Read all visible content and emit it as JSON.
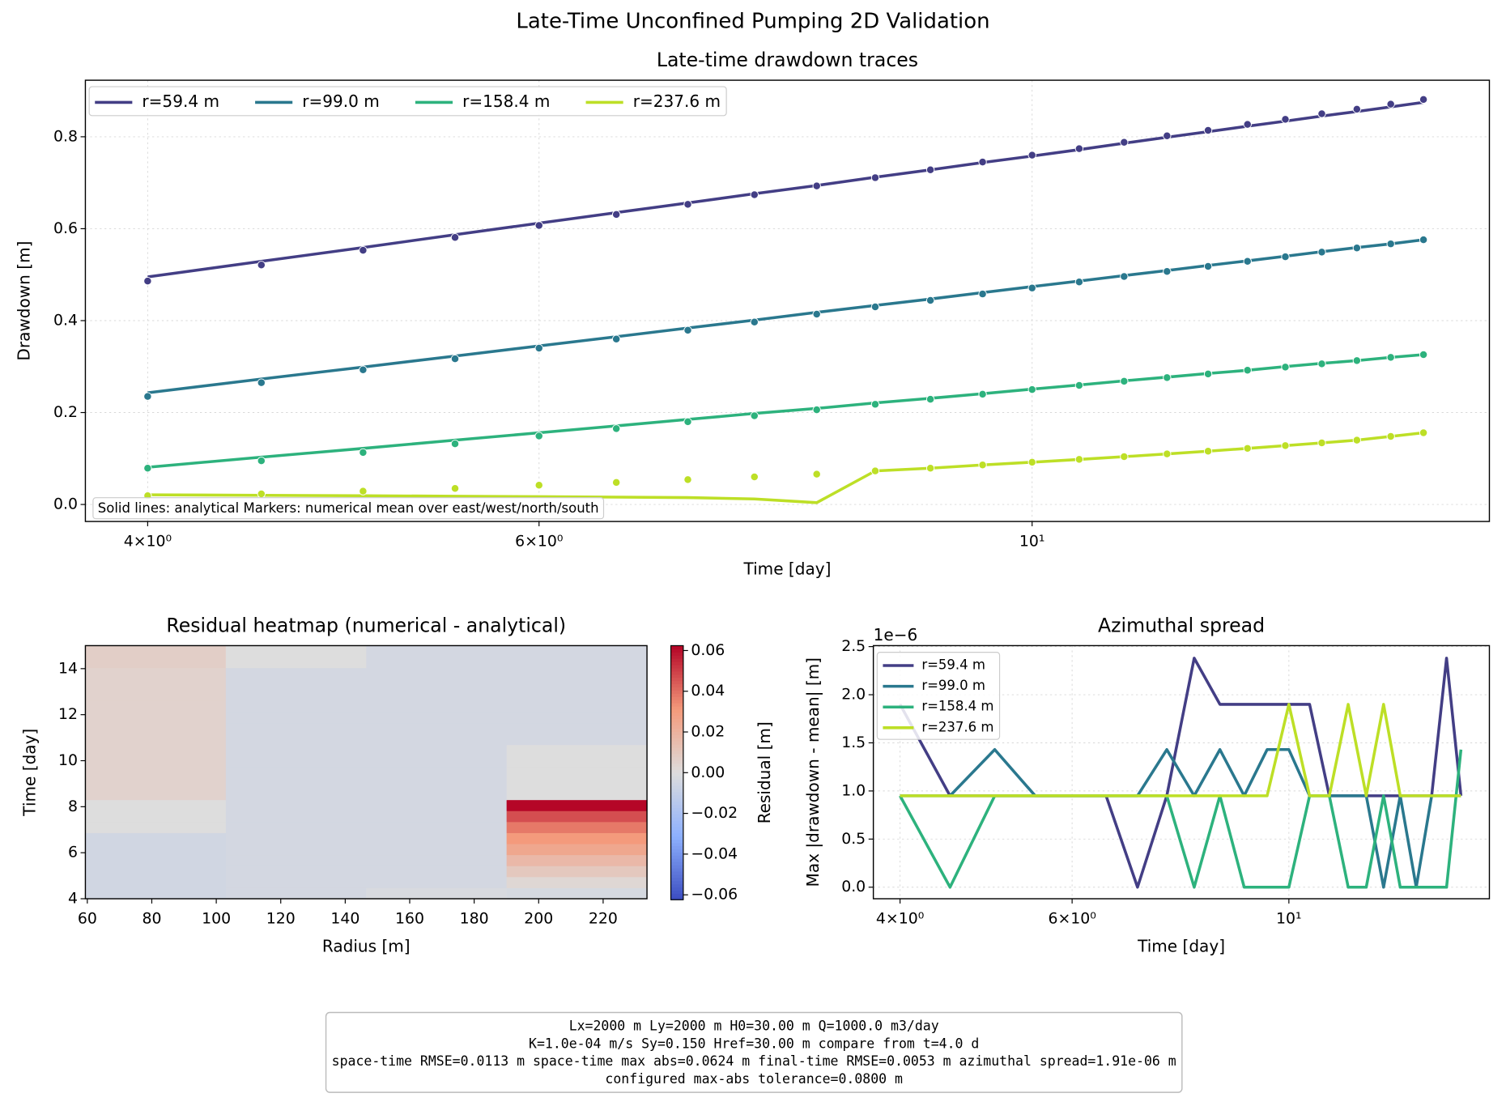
{
  "title": "Late-Time Unconfined Pumping 2D Validation",
  "chart_data": [
    {
      "type": "line",
      "title": "Late-time drawdown traces",
      "xlabel": "Time [day]",
      "ylabel": "Drawdown [m]",
      "xscale": "log",
      "xlim": [
        3.75,
        16.06
      ],
      "ylim": [
        -0.037,
        0.923
      ],
      "xticks": [
        {
          "value": 4,
          "label": "4×10⁰"
        },
        {
          "value": 6,
          "label": "6×10⁰"
        },
        {
          "value": 10,
          "label": "10¹"
        }
      ],
      "yticks": [
        {
          "value": 0,
          "label": "0.0"
        },
        0.2,
        0.4,
        0.6,
        0.8
      ],
      "grid": true,
      "legend": "upper left",
      "legend_ncol": 4,
      "annotation": "Solid lines: analytical   Markers: numerical mean over east/west/north/south",
      "x": [
        4,
        4.5,
        5,
        5.5,
        6,
        6.5,
        7,
        7.5,
        8,
        8.5,
        9,
        9.5,
        10,
        10.5,
        11,
        11.5,
        12,
        12.5,
        13,
        13.5,
        14,
        14.5,
        15
      ],
      "series": [
        {
          "name": "r=59.4 m",
          "color": "#433e85",
          "values": [
            0.495,
            0.529,
            0.559,
            0.587,
            0.612,
            0.635,
            0.656,
            0.676,
            0.694,
            0.712,
            0.728,
            0.744,
            0.758,
            0.772,
            0.786,
            0.799,
            0.811,
            0.823,
            0.834,
            0.845,
            0.855,
            0.865,
            0.875
          ],
          "marker_values": [
            0.486,
            0.521,
            0.553,
            0.581,
            0.607,
            0.631,
            0.653,
            0.674,
            0.693,
            0.711,
            0.728,
            0.745,
            0.76,
            0.774,
            0.788,
            0.802,
            0.814,
            0.827,
            0.838,
            0.85,
            0.86,
            0.871,
            0.881
          ]
        },
        {
          "name": "r=99.0 m",
          "color": "#2a788e",
          "values": [
            0.243,
            0.273,
            0.299,
            0.323,
            0.345,
            0.365,
            0.384,
            0.401,
            0.418,
            0.433,
            0.447,
            0.461,
            0.474,
            0.486,
            0.498,
            0.509,
            0.52,
            0.53,
            0.54,
            0.55,
            0.559,
            0.567,
            0.576
          ],
          "marker_values": [
            0.235,
            0.265,
            0.293,
            0.317,
            0.34,
            0.36,
            0.379,
            0.397,
            0.414,
            0.43,
            0.444,
            0.458,
            0.471,
            0.484,
            0.496,
            0.507,
            0.518,
            0.529,
            0.539,
            0.549,
            0.558,
            0.567,
            0.576
          ]
        },
        {
          "name": "r=158.4 m",
          "color": "#2db27d",
          "values": [
            0.081,
            0.103,
            0.122,
            0.14,
            0.156,
            0.171,
            0.185,
            0.198,
            0.209,
            0.221,
            0.231,
            0.241,
            0.251,
            0.26,
            0.269,
            0.277,
            0.285,
            0.292,
            0.3,
            0.307,
            0.313,
            0.32,
            0.326
          ],
          "marker_values": [
            0.079,
            0.095,
            0.113,
            0.132,
            0.149,
            0.165,
            0.18,
            0.193,
            0.206,
            0.218,
            0.229,
            0.24,
            0.25,
            0.259,
            0.268,
            0.276,
            0.284,
            0.292,
            0.299,
            0.306,
            0.313,
            0.32,
            0.326
          ]
        },
        {
          "name": "r=237.6 m",
          "color": "#bddf26",
          "values": [
            0.021,
            0.02,
            0.019,
            0.018,
            0.017,
            0.016,
            0.015,
            0.012,
            0.004,
            0.073,
            0.079,
            0.086,
            0.092,
            0.098,
            0.104,
            0.11,
            0.116,
            0.122,
            0.128,
            0.134,
            0.14,
            0.148,
            0.156
          ],
          "marker_values": [
            0.019,
            0.023,
            0.029,
            0.035,
            0.042,
            0.048,
            0.054,
            0.06,
            0.066,
            0.073,
            0.079,
            0.086,
            0.092,
            0.098,
            0.104,
            0.11,
            0.116,
            0.122,
            0.128,
            0.134,
            0.14,
            0.148,
            0.156
          ]
        }
      ]
    },
    {
      "type": "heatmap",
      "title": "Residual heatmap (numerical - analytical)",
      "xlabel": "Radius [m]",
      "ylabel": "Time [day]",
      "colorbar_label": "Residual [m]",
      "colormap": "coolwarm",
      "xlim": [
        59.4,
        233.6
      ],
      "ylim": [
        4,
        15
      ],
      "xticks": [
        60,
        80,
        100,
        120,
        140,
        160,
        180,
        200,
        220
      ],
      "yticks": [
        4,
        6,
        8,
        10,
        12,
        14
      ],
      "clim": [
        -0.0624,
        0.0624
      ],
      "cticks": [
        {
          "value": -0.06,
          "label": "−0.06"
        },
        {
          "value": -0.04,
          "label": "−0.04"
        },
        {
          "value": -0.02,
          "label": "−0.02"
        },
        {
          "value": 0,
          "label": "0.00"
        },
        0.02,
        0.04,
        0.06
      ],
      "z": [
        [
          -0.005,
          -0.004,
          -0.002,
          -0.003
        ],
        [
          -0.005,
          -0.004,
          -0.004,
          0.003
        ],
        [
          -0.005,
          -0.004,
          -0.004,
          0.01
        ],
        [
          -0.005,
          -0.004,
          -0.004,
          0.017
        ],
        [
          -0.005,
          -0.004,
          -0.004,
          0.025
        ],
        [
          -0.005,
          -0.004,
          -0.004,
          0.031
        ],
        [
          0,
          -0.004,
          -0.004,
          0.038
        ],
        [
          0,
          -0.004,
          -0.004,
          0.047
        ],
        [
          0,
          -0.004,
          -0.004,
          0.062
        ],
        [
          0.005,
          -0.004,
          -0.004,
          0
        ],
        [
          0.005,
          -0.004,
          -0.004,
          0
        ],
        [
          0.005,
          -0.004,
          -0.004,
          0
        ],
        [
          0.005,
          -0.004,
          -0.004,
          0
        ],
        [
          0.005,
          -0.004,
          -0.004,
          0
        ],
        [
          0.005,
          -0.004,
          -0.004,
          -0.004
        ],
        [
          0.005,
          -0.004,
          -0.004,
          -0.004
        ],
        [
          0.005,
          -0.004,
          -0.004,
          -0.004
        ],
        [
          0.005,
          -0.004,
          -0.004,
          -0.004
        ],
        [
          0.005,
          -0.004,
          -0.004,
          -0.004
        ],
        [
          0.005,
          -0.004,
          -0.004,
          -0.004
        ],
        [
          0.005,
          -0.004,
          -0.004,
          -0.004
        ],
        [
          0.007,
          0,
          -0.004,
          -0.004
        ],
        [
          0.007,
          0,
          -0.004,
          -0.004
        ]
      ]
    },
    {
      "type": "line",
      "title": "Azimuthal spread",
      "xlabel": "Time [day]",
      "ylabel": "Max |drawdown - mean| [m]",
      "offset_label": "1e−6",
      "xscale": "log",
      "xlim": [
        3.756,
        16.04
      ],
      "ylim": [
        -0.12,
        2.51
      ],
      "xticks": [
        {
          "value": 4,
          "label": "4×10⁰"
        },
        {
          "value": 6,
          "label": "6×10⁰"
        },
        {
          "value": 10,
          "label": "10¹"
        }
      ],
      "yticks": [
        {
          "value": 0,
          "label": "0.0"
        },
        0.5,
        {
          "value": 1,
          "label": "1.0"
        },
        1.5,
        {
          "value": 2,
          "label": "2.0"
        },
        2.5
      ],
      "grid": true,
      "legend": "upper left",
      "legend_ncol": 1,
      "x": [
        4,
        4.5,
        5,
        5.5,
        6,
        6.5,
        7,
        7.5,
        8,
        8.5,
        9,
        9.5,
        10,
        10.5,
        11,
        11.5,
        12,
        12.5,
        13,
        13.5,
        14,
        14.5,
        15
      ],
      "series": [
        {
          "name": "r=59.4 m",
          "color": "#433e85",
          "values": [
            1.9,
            0.95,
            0.95,
            0.95,
            0.95,
            0.95,
            0,
            0.95,
            2.38,
            1.9,
            1.9,
            1.9,
            1.9,
            1.9,
            0.95,
            0.95,
            0.95,
            0.95,
            0.95,
            0.95,
            0.95,
            2.38,
            0.95
          ]
        },
        {
          "name": "r=99.0 m",
          "color": "#2a788e",
          "values": [
            0.95,
            0.95,
            1.43,
            0.95,
            0.95,
            0.95,
            0.95,
            1.43,
            0.95,
            1.43,
            0.95,
            1.43,
            1.43,
            0.95,
            0.95,
            0.95,
            0.95,
            0,
            0.95,
            0,
            0.95,
            0.95,
            0.95
          ]
        },
        {
          "name": "r=158.4 m",
          "color": "#2db27d",
          "values": [
            0.95,
            0,
            0.95,
            0.95,
            0.95,
            0.95,
            0.95,
            0.95,
            0,
            0.95,
            0,
            0,
            0,
            0.95,
            0.95,
            0,
            0,
            0.95,
            0,
            0,
            0,
            0,
            1.43
          ]
        },
        {
          "name": "r=237.6 m",
          "color": "#bddf26",
          "values": [
            0.95,
            0.95,
            0.95,
            0.95,
            0.95,
            0.95,
            0.95,
            0.95,
            0.95,
            0.95,
            0.95,
            0.95,
            1.9,
            0.95,
            0.95,
            1.9,
            0.95,
            1.9,
            0.95,
            0.95,
            0.95,
            0.95,
            0.95
          ]
        }
      ]
    }
  ],
  "info_box": [
    "Lx=2000 m   Ly=2000 m   H0=30.00 m   Q=1000.0 m3/day",
    "K=1.0e-04 m/s   Sy=0.150   Href=30.00 m   compare from t=4.0 d",
    "space-time RMSE=0.0113 m   space-time max abs=0.0624 m   final-time RMSE=0.0053 m   azimuthal spread=1.91e-06 m",
    "configured max-abs tolerance=0.0800 m"
  ]
}
